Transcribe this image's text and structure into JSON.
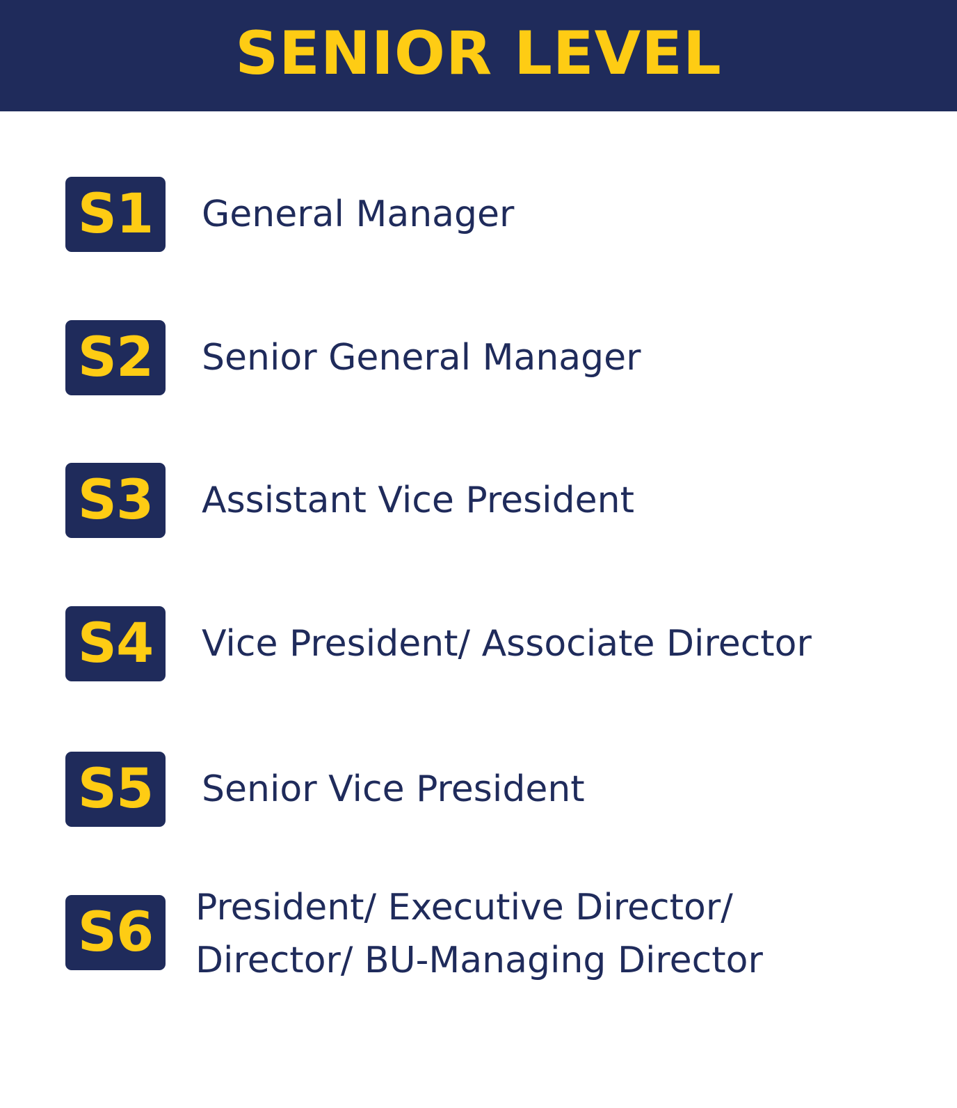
{
  "header": {
    "title": "SENIOR LEVEL"
  },
  "levels": [
    {
      "code": "S1",
      "title": "General Manager"
    },
    {
      "code": "S2",
      "title": "Senior General Manager"
    },
    {
      "code": "S3",
      "title": "Assistant Vice President"
    },
    {
      "code": "S4",
      "title": "Vice President/ Associate Director"
    },
    {
      "code": "S5",
      "title": "Senior Vice President"
    },
    {
      "code": "S6",
      "title_lines": [
        "President/ Executive Director/",
        "Director/ BU-Managing Director"
      ]
    }
  ],
  "colors": {
    "navy": "#1f2b5b",
    "yellow": "#fecc14",
    "background": "#ffffff"
  }
}
